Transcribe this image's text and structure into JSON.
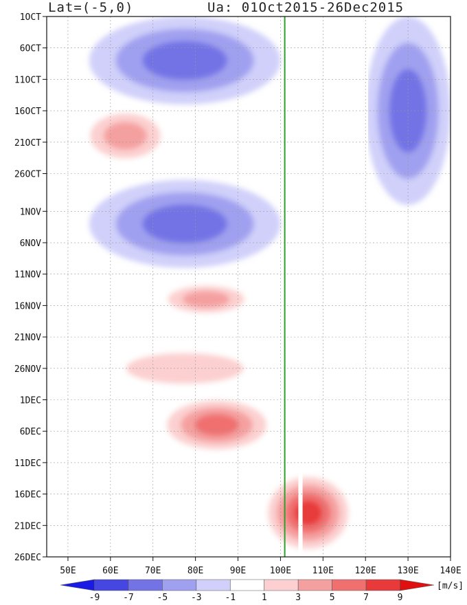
{
  "chart_data": {
    "type": "heatmap",
    "title_left": "Lat=(-5,0)",
    "title_right": "Ua: 01Oct2015-26Dec2015",
    "x_ticks": [
      "50E",
      "60E",
      "70E",
      "80E",
      "90E",
      "100E",
      "110E",
      "120E",
      "130E",
      "140E"
    ],
    "x_tick_values": [
      50,
      60,
      70,
      80,
      90,
      100,
      110,
      120,
      130,
      140
    ],
    "xlim": [
      45,
      140
    ],
    "y_ticks": [
      "1OCT",
      "6OCT",
      "11OCT",
      "16OCT",
      "21OCT",
      "26OCT",
      "1NOV",
      "6NOV",
      "11NOV",
      "16NOV",
      "21NOV",
      "26NOV",
      "1DEC",
      "6DEC",
      "11DEC",
      "16DEC",
      "21DEC",
      "26DEC"
    ],
    "y_tick_days": [
      0,
      5,
      10,
      15,
      20,
      25,
      31,
      36,
      41,
      46,
      51,
      56,
      61,
      66,
      71,
      76,
      81,
      86
    ],
    "ylim_days": [
      0,
      86
    ],
    "reference_line_lon": 101,
    "colorbar": {
      "unit": "[m/s]",
      "labels": [
        "-9",
        "-7",
        "-5",
        "-3",
        "-1",
        "1",
        "3",
        "5",
        "7",
        "9"
      ],
      "levels": [
        -9,
        -7,
        -5,
        -3,
        -1,
        1,
        3,
        5,
        7,
        9
      ],
      "colors": [
        "#1a1ae6",
        "#4646e0",
        "#7373e6",
        "#a0a0f0",
        "#d0d0fa",
        "#ffffff",
        "#fcd0d0",
        "#f5a0a0",
        "#f07070",
        "#e83a3a",
        "#e01010"
      ]
    },
    "features": [
      {
        "name": "easterly-early-oct",
        "lon": [
          55,
          100
        ],
        "days": [
          0,
          14
        ],
        "value": -6
      },
      {
        "name": "westerly-mid-oct",
        "lon": [
          52,
          75
        ],
        "days": [
          14,
          24
        ],
        "value": 5
      },
      {
        "name": "easterly-late-oct-nov",
        "lon": [
          55,
          100
        ],
        "days": [
          26,
          40
        ],
        "value": -5
      },
      {
        "name": "westerly-mid-nov",
        "lon": [
          70,
          95
        ],
        "days": [
          42,
          48
        ],
        "value": 5
      },
      {
        "name": "westerly-late-nov",
        "lon": [
          55,
          100
        ],
        "days": [
          52,
          60
        ],
        "value": 4
      },
      {
        "name": "westerly-early-dec",
        "lon": [
          70,
          100
        ],
        "days": [
          60,
          70
        ],
        "value": 7
      },
      {
        "name": "westerly-mid-dec",
        "lon": [
          95,
          118
        ],
        "days": [
          72,
          86
        ],
        "value": 9
      },
      {
        "name": "easterly-east-oct",
        "lon": [
          120,
          140
        ],
        "days": [
          0,
          30
        ],
        "value": -5
      }
    ]
  }
}
